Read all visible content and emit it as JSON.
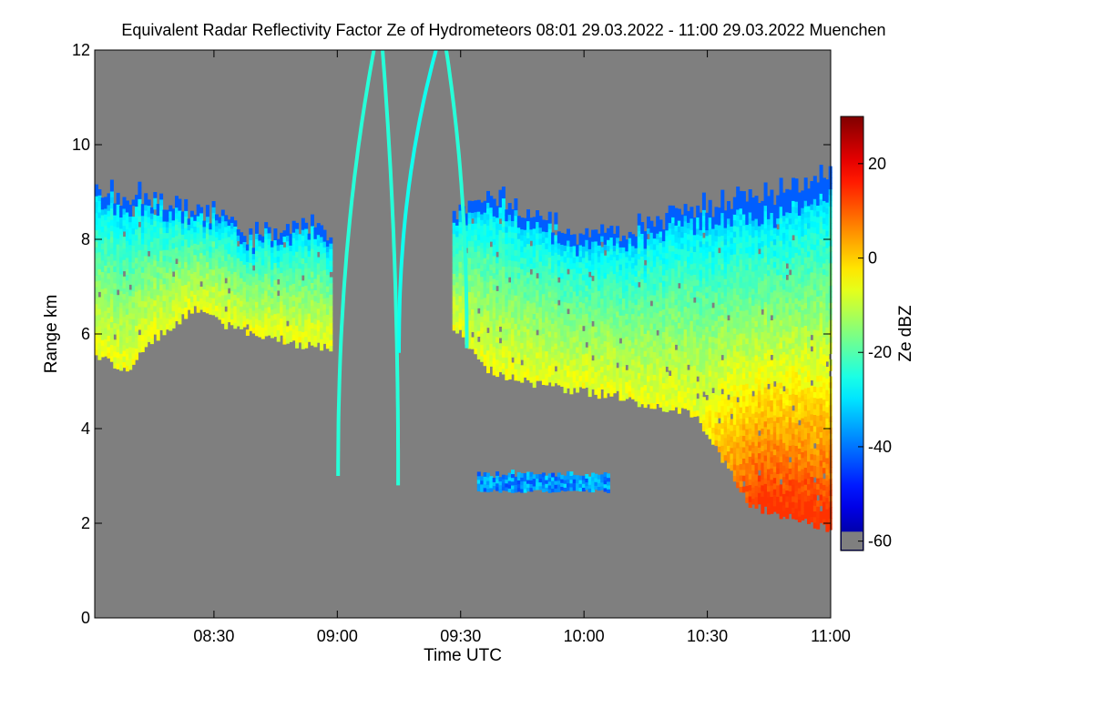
{
  "chart_data": {
    "type": "heatmap",
    "title": "Equivalent Radar Reflectivity Factor Ze of Hydrometeors   08:01 29.03.2022 - 11:00 29.03.2022 Muenchen",
    "xlabel": "Time UTC",
    "ylabel": "Range km",
    "x_range_minutes_utc": [
      481,
      660
    ],
    "xticks": [
      {
        "label": "08:30",
        "minutes_utc": 510
      },
      {
        "label": "09:00",
        "minutes_utc": 540
      },
      {
        "label": "09:30",
        "minutes_utc": 570
      },
      {
        "label": "10:00",
        "minutes_utc": 600
      },
      {
        "label": "10:30",
        "minutes_utc": 630
      },
      {
        "label": "11:00",
        "minutes_utc": 660
      }
    ],
    "ylim": [
      0,
      12
    ],
    "yticks": [
      0,
      2,
      4,
      6,
      8,
      10,
      12
    ],
    "colorbar": {
      "label": "Ze dBZ",
      "range": [
        -62,
        30
      ],
      "ticks": [
        20,
        0,
        -20,
        -40,
        -60
      ],
      "no_data_color": "#7f7f7f"
    },
    "features": [
      {
        "name": "upper cloud layer",
        "start_minutes_utc": 481,
        "end_minutes_utc": 660,
        "base_km": [
          5.3,
          6.0,
          5.6,
          4.7,
          4.4,
          1.9
        ],
        "top_km": [
          9.0,
          8.5,
          8.3,
          8.6,
          8.6,
          9.2
        ],
        "ze_dbz_max": 12
      },
      {
        "name": "lower layer",
        "start_minutes_utc": 574,
        "end_minutes_utc": 606,
        "base_km": 2.7,
        "top_km": 3.0,
        "ze_dbz": -35
      },
      {
        "name": "precipitation core",
        "start_minutes_utc": 630,
        "end_minutes_utc": 660,
        "base_km": 2.0,
        "top_km": 4.5,
        "ze_dbz_max": 12
      }
    ]
  }
}
